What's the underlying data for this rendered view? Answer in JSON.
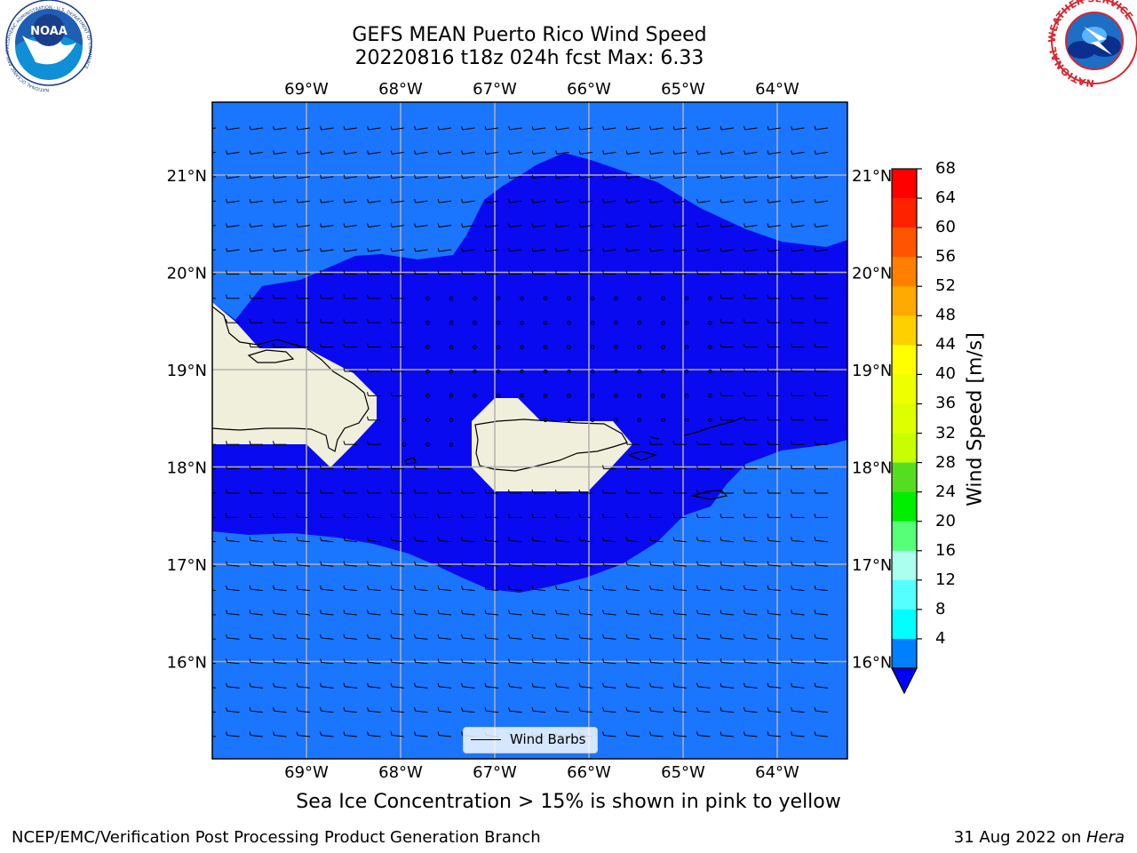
{
  "title": {
    "line1": "GEFS MEAN Puerto Rico Wind Speed",
    "line2": "20220816 t18z 024h fcst   Max: 6.33"
  },
  "axes": {
    "lon_ticks": [
      "69°W",
      "68°W",
      "67°W",
      "66°W",
      "65°W",
      "64°W"
    ],
    "lat_ticks": [
      "21°N",
      "20°N",
      "19°N",
      "18°N",
      "17°N",
      "16°N"
    ],
    "lon_range": [
      -70,
      -63.25
    ],
    "lat_range": [
      15.0,
      21.75
    ]
  },
  "colorbar": {
    "title": "Wind Speed [m/s]",
    "ticks": [
      "68",
      "64",
      "60",
      "56",
      "52",
      "48",
      "44",
      "40",
      "36",
      "32",
      "28",
      "24",
      "20",
      "16",
      "12",
      "8",
      "4"
    ],
    "colors": [
      "#ff0000",
      "#ff2a00",
      "#ff5500",
      "#ff8000",
      "#ffaa00",
      "#ffd400",
      "#ffff00",
      "#eaff00",
      "#d4ff00",
      "#bfff00",
      "#55ee00",
      "#00ee00",
      "#55ff88",
      "#aaffee",
      "#55ffff",
      "#00ffff",
      "#00bfff",
      "#0080ff",
      "#0000ff"
    ],
    "band_colors_top_to_bottom": [
      "#ff0000",
      "#ff2200",
      "#ff5500",
      "#ff8000",
      "#ffaa00",
      "#ffd000",
      "#ffff00",
      "#eeff00",
      "#ddff00",
      "#c8ff00",
      "#55dd22",
      "#00ee00",
      "#55ff77",
      "#aaffee",
      "#55ffff",
      "#00ffff",
      "#0080ff"
    ],
    "extend_color": "#0000ff"
  },
  "fill_colors": {
    "outer": "#1a75ff",
    "inner": "#0a0af0",
    "land": "#efefdc"
  },
  "legend": {
    "label": "Wind Barbs"
  },
  "caption": "Sea Ice Concentration > 15% is shown in pink to yellow",
  "footer": {
    "left": "NCEP/EMC/Verification Post Processing Product Generation Branch",
    "right_date": "31 Aug 2022 on ",
    "right_platform": "Hera"
  },
  "logos": {
    "noaa": {
      "text": "NOAA",
      "ring": "NATIONAL OCEANIC AND ATMOSPHERIC ADMINISTRATION · U.S. DEPARTMENT OF COMMERCE"
    },
    "nws": {
      "ring": "NATIONAL WEATHER SERVICE"
    }
  }
}
